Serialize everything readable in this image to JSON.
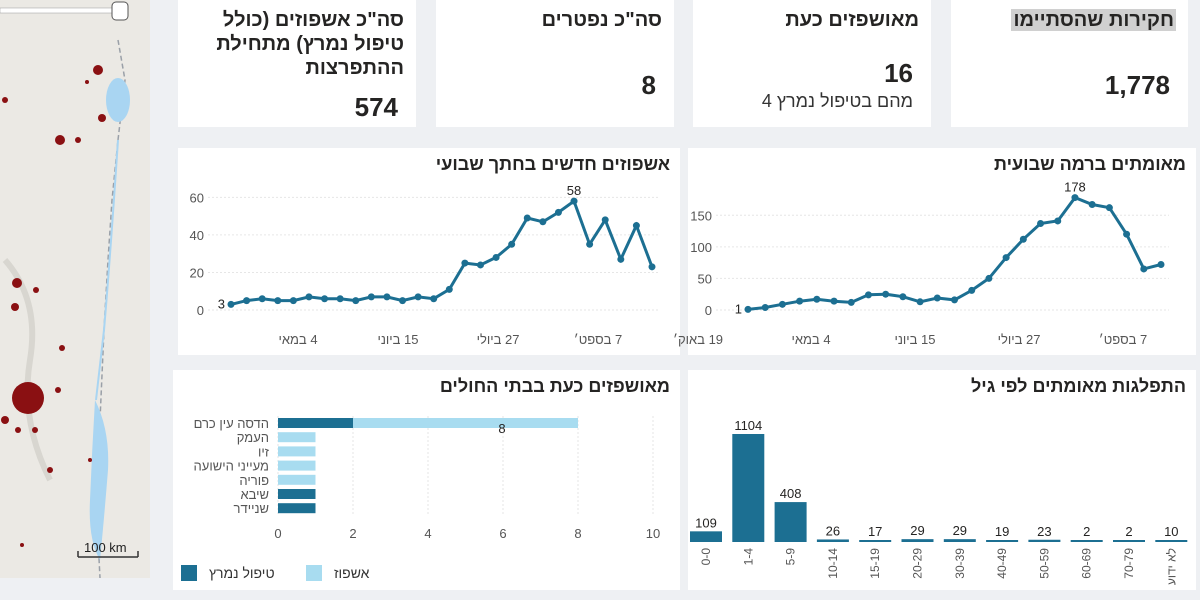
{
  "map": {
    "scale_label": "100 km"
  },
  "kpis": {
    "investigations": {
      "title": "חקירות שהסתיימו",
      "value": "1,778"
    },
    "hospitalized_now": {
      "title": "מאושפזים כעת",
      "value": "16",
      "sub": "מהם בטיפול נמרץ 4"
    },
    "deaths": {
      "title": "סה\"כ נפטרים",
      "value": "8"
    },
    "total_hospitalized": {
      "title_line1": "סה\"כ אשפוזים (כולל",
      "title_line2": "טיפול נמרץ) מתחילת",
      "title_line3": "ההתפרצות",
      "value": "574"
    }
  },
  "charts": {
    "weekly_confirmed": {
      "title": "מאומתים ברמה שבועית"
    },
    "weekly_hospitalized": {
      "title": "אשפוזים חדשים בחתך שבועי"
    },
    "age_distribution": {
      "title": "התפלגות מאומתים לפי גיל"
    },
    "hospitals_now": {
      "title": "מאושפזים כעת בבתי החולים"
    }
  },
  "legend": {
    "hospitalization": "אשפוז",
    "intensive_care": "טיפול נמרץ"
  },
  "colors": {
    "dark": "#1c6f92",
    "light": "#a8dcf0",
    "grid": "#e6e6e6"
  },
  "chart_data": [
    {
      "type": "line",
      "title": "מאומתים ברמה שבועית",
      "x_tick_labels": [
        "4 במאי",
        "15 ביוני",
        "27 ביולי",
        "7 בספט׳"
      ],
      "values": [
        1,
        4,
        9,
        14,
        17,
        14,
        12,
        24,
        25,
        21,
        13,
        19,
        16,
        31,
        50,
        83,
        112,
        137,
        141,
        178,
        167,
        162,
        120,
        65,
        72
      ],
      "data_labels": [
        {
          "index": 0,
          "text": "1"
        },
        {
          "index": 19,
          "text": "178"
        }
      ],
      "y_ticks": [
        0,
        50,
        100,
        150
      ],
      "ylim": [
        0,
        190
      ]
    },
    {
      "type": "line",
      "title": "אשפוזים חדשים בחתך שבועי",
      "x_tick_labels": [
        "4 במאי",
        "15 ביוני",
        "27 ביולי",
        "7 בספט׳",
        "19 באוק׳"
      ],
      "values": [
        3,
        5,
        6,
        5,
        5,
        7,
        6,
        6,
        5,
        7,
        7,
        5,
        7,
        6,
        11,
        25,
        24,
        28,
        35,
        49,
        47,
        52,
        58,
        35,
        48,
        27,
        45,
        23
      ],
      "data_labels": [
        {
          "index": 0,
          "text": "3"
        },
        {
          "index": 22,
          "text": "58"
        }
      ],
      "y_ticks": [
        0,
        20,
        40,
        60
      ],
      "ylim": [
        0,
        65
      ]
    },
    {
      "type": "bar",
      "title": "התפלגות מאומתים לפי גיל",
      "categories": [
        "0-0",
        "1-4",
        "5-9",
        "10-14",
        "15-19",
        "20-29",
        "30-39",
        "40-49",
        "50-59",
        "60-69",
        "70-79",
        "לא ידוע"
      ],
      "values": [
        109,
        1104,
        408,
        26,
        17,
        29,
        29,
        19,
        23,
        2,
        2,
        10
      ]
    },
    {
      "type": "bar",
      "orientation": "horizontal",
      "stacked": true,
      "title": "מאושפזים כעת בבתי החולים",
      "categories": [
        "הדסה עין כרם",
        "העמק",
        "זיו",
        "מעייני הישועה",
        "פוריה",
        "שיבא",
        "שניידר"
      ],
      "series": [
        {
          "name": "טיפול נמרץ",
          "values": [
            2,
            0,
            0,
            0,
            0,
            1,
            1
          ]
        },
        {
          "name": "אשפוז",
          "values": [
            6,
            1,
            1,
            1,
            1,
            0,
            0
          ]
        }
      ],
      "total_labels": [
        {
          "index": 0,
          "text": "8"
        }
      ],
      "x_ticks": [
        0,
        2,
        4,
        6,
        8,
        10
      ],
      "xlim": [
        0,
        10
      ]
    }
  ]
}
